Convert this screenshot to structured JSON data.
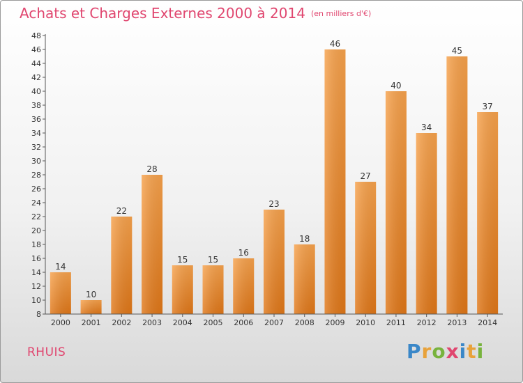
{
  "title": "Achats et Charges Externes 2000 à 2014",
  "unit": "(en milliers d'€)",
  "commune": "RHUIS",
  "logo": {
    "text": "Proxiti",
    "colors": [
      "#3a87c8",
      "#e8a23a",
      "#78b33d",
      "#e0466f"
    ]
  },
  "chart_data": {
    "type": "bar",
    "title": "Achats et Charges Externes 2000 à 2014",
    "subtitle": "(en milliers d'€)",
    "xlabel": "",
    "ylabel": "",
    "categories": [
      "2000",
      "2001",
      "2002",
      "2003",
      "2004",
      "2005",
      "2006",
      "2007",
      "2008",
      "2009",
      "2010",
      "2011",
      "2012",
      "2013",
      "2014"
    ],
    "values": [
      14,
      10,
      22,
      28,
      15,
      15,
      16,
      23,
      18,
      46,
      27,
      40,
      34,
      45,
      37
    ],
    "ylim": [
      8,
      48
    ],
    "ytick_step": 2,
    "grid": false,
    "bar_color": "#f08a2e"
  }
}
